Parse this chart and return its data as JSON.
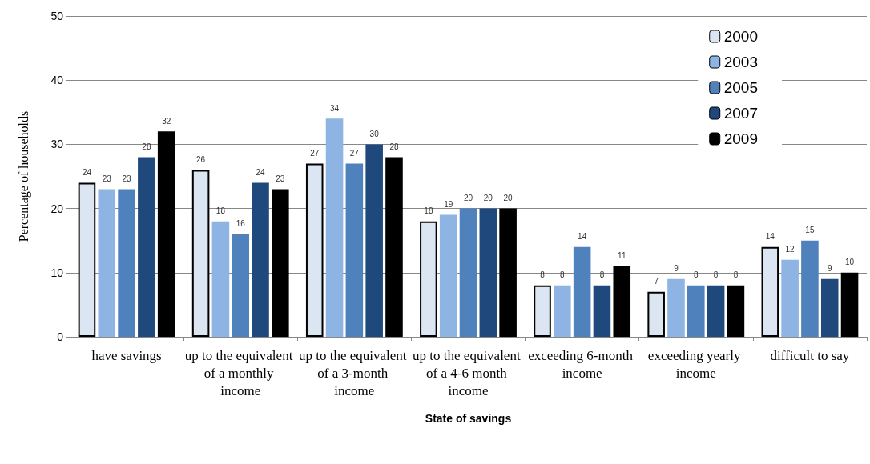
{
  "chart_data": {
    "type": "bar",
    "xlabel": "State of savings",
    "ylabel": "Percentage of households",
    "categories": [
      "have savings",
      "up to the equivalent of a monthly income",
      "up to the equivalent of a 3-month income",
      "up to the equivalent of a 4-6 month income",
      "exceeding 6-month income",
      "exceeding yearly income",
      "difficult to say"
    ],
    "series": [
      {
        "name": "2000",
        "color": "#dce6f2",
        "values": [
          24,
          26,
          27,
          18,
          8,
          7,
          14
        ]
      },
      {
        "name": "2003",
        "color": "#8db4e2",
        "values": [
          23,
          18,
          34,
          19,
          8,
          9,
          12
        ]
      },
      {
        "name": "2005",
        "color": "#4f81bd",
        "values": [
          23,
          16,
          27,
          20,
          14,
          8,
          15
        ]
      },
      {
        "name": "2007",
        "color": "#1f497d",
        "values": [
          28,
          24,
          30,
          20,
          8,
          8,
          9
        ]
      },
      {
        "name": "2009",
        "color": "#000000",
        "values": [
          32,
          23,
          28,
          20,
          11,
          8,
          10
        ]
      }
    ],
    "ylim": [
      0,
      50
    ],
    "yticks": [
      0,
      10,
      20,
      30,
      40,
      50
    ],
    "grid": "y",
    "legend": "top right",
    "data_labels": true
  }
}
